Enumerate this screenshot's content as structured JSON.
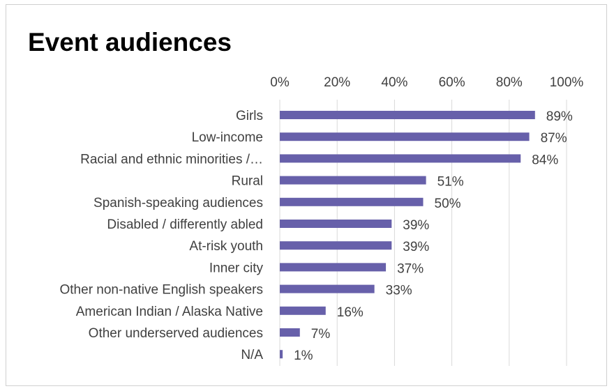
{
  "chart_data": {
    "type": "bar",
    "orientation": "horizontal",
    "title": "Event audiences",
    "categories": [
      "Girls",
      "Low-income",
      "Racial and ethnic minorities /…",
      "Rural",
      "Spanish-speaking audiences",
      "Disabled / differently abled",
      "At-risk youth",
      "Inner city",
      "Other non-native English speakers",
      "American Indian / Alaska Native",
      "Other underserved audiences",
      "N/A"
    ],
    "values": [
      89,
      87,
      84,
      51,
      50,
      39,
      39,
      37,
      33,
      16,
      7,
      1
    ],
    "data_labels": [
      "89%",
      "87%",
      "84%",
      "51%",
      "50%",
      "39%",
      "39%",
      "37%",
      "33%",
      "16%",
      "7%",
      "1%"
    ],
    "xlim": [
      0,
      100
    ],
    "xticks": [
      0,
      20,
      40,
      60,
      80,
      100
    ],
    "xtick_labels": [
      "0%",
      "20%",
      "40%",
      "60%",
      "80%",
      "100%"
    ],
    "x_axis_position": "top",
    "grid": true,
    "legend": false,
    "colors": {
      "bar": "#6760AA",
      "grid": "#d9d9d9",
      "text": "#404040"
    }
  }
}
